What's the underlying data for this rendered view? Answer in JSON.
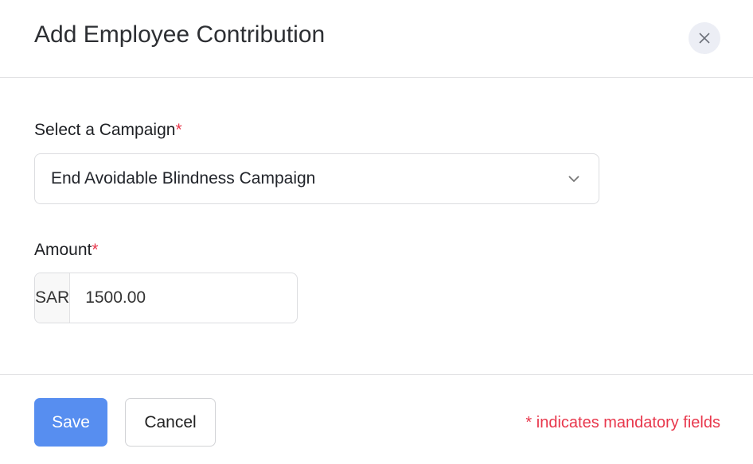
{
  "dialog": {
    "title": "Add Employee Contribution",
    "close_icon": "close-icon"
  },
  "campaign": {
    "label": "Select a Campaign",
    "required_mark": "*",
    "value": "End Avoidable Blindness Campaign"
  },
  "amount": {
    "label": "Amount",
    "required_mark": "*",
    "currency": "SAR",
    "value": "1500.00"
  },
  "footer": {
    "save_label": "Save",
    "cancel_label": "Cancel",
    "mandatory_note": "* indicates mandatory fields"
  },
  "colors": {
    "primary": "#578ef0",
    "required": "#e8374c"
  }
}
